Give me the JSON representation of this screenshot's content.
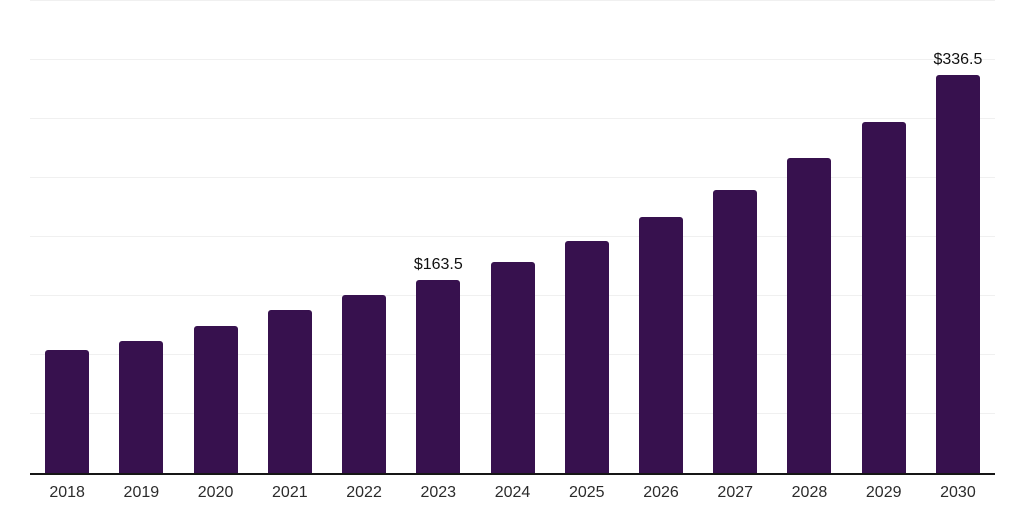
{
  "chart_data": {
    "type": "bar",
    "title": "",
    "xlabel": "",
    "ylabel": "",
    "categories": [
      "2018",
      "2019",
      "2020",
      "2021",
      "2022",
      "2023",
      "2024",
      "2025",
      "2026",
      "2027",
      "2028",
      "2029",
      "2030"
    ],
    "values": [
      104.0,
      111.3,
      124.4,
      137.5,
      150.6,
      163.5,
      178.4,
      196.1,
      216.1,
      239.4,
      266.3,
      297.0,
      336.5
    ],
    "bar_labels": [
      "",
      "",
      "",
      "",
      "",
      "$163.5",
      "",
      "",
      "",
      "",
      "",
      "",
      "$336.5"
    ],
    "ylim": [
      0,
      400
    ],
    "gridline_values": [
      50,
      100,
      150,
      200,
      250,
      300,
      350,
      400
    ],
    "grid": "horizontal",
    "legend_position": "none",
    "colors": {
      "bar": "#37114E",
      "axis": "#161616",
      "gridline": "#f0f0f0",
      "tick_label": "#2b2b2b",
      "data_label": "#111111",
      "background": "#ffffff"
    }
  }
}
